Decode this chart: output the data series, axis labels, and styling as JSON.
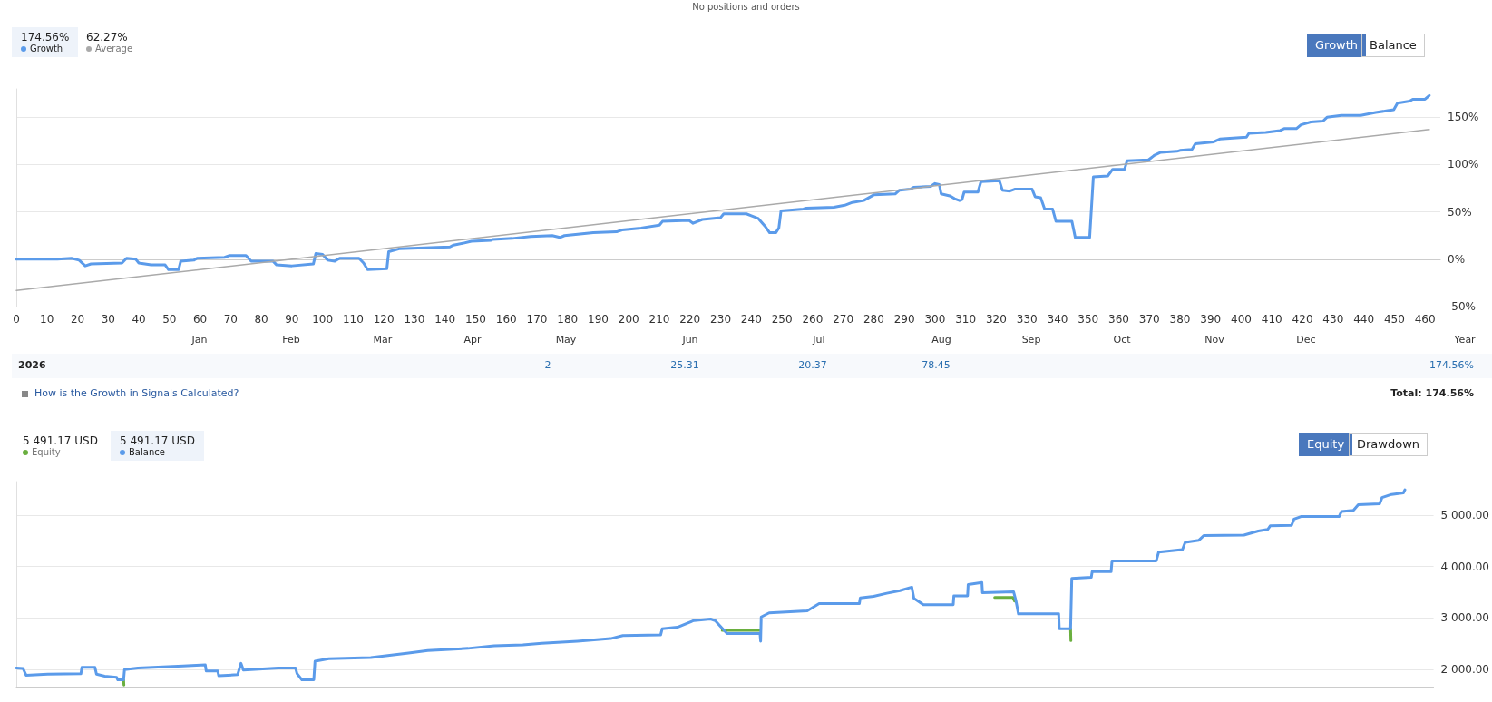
{
  "chart_data": [
    {
      "type": "line",
      "series": [
        {
          "name": "Growth",
          "color": "#5b9bea",
          "x": [
            0,
            13.4,
            18,
            20.5,
            22.5,
            24.4,
            34.5,
            36,
            39,
            40,
            44,
            48.6,
            49.7,
            53,
            53.7,
            58,
            59,
            68,
            69.7,
            75,
            76.7,
            83.8,
            85,
            90,
            97,
            97.8,
            100,
            101.7,
            104,
            105.6,
            111.9,
            113.4,
            114.7,
            121,
            121.6,
            125,
            141.6,
            142.8,
            146,
            148.6,
            155,
            155.6,
            162,
            168,
            175,
            177.5,
            179,
            188.4,
            196,
            197.8,
            204,
            210,
            211,
            219.7,
            221,
            224,
            230,
            231,
            238.4,
            240,
            242.3,
            244.7,
            246,
            248,
            249,
            249.7,
            257,
            258,
            267,
            270.5,
            273,
            276.7,
            280,
            287,
            288.4,
            292,
            293,
            298.6,
            300,
            301.4,
            302,
            304.8,
            306.4,
            308,
            308.8,
            309.5,
            314,
            315,
            321,
            322,
            324.4,
            326,
            331.7,
            332.7,
            334.5,
            335.8,
            338.4,
            339.5,
            344.7,
            345.8,
            350.5,
            351.7,
            356.4,
            358,
            361.9,
            362.7,
            369.7,
            371.7,
            373.7,
            379,
            380,
            383.9,
            385,
            391,
            393,
            401.7,
            402.5,
            408,
            412.7,
            414,
            418,
            419.5,
            422.7,
            426.7,
            428,
            432.7,
            439,
            443.9,
            447.8,
            449.8,
            451,
            455,
            456,
            460,
            461.4
          ],
          "values": [
            0,
            0,
            1,
            -1,
            -7,
            -5,
            -4,
            1,
            0,
            -4,
            -6,
            -6,
            -11,
            -11,
            -2,
            -1,
            1,
            2,
            4,
            4,
            -2,
            -2,
            -6,
            -7,
            -5,
            6,
            5,
            -1,
            -2,
            1,
            1,
            -4,
            -11,
            -10,
            8,
            11,
            13,
            15,
            17,
            19,
            20,
            21,
            22,
            24,
            25,
            23,
            25,
            28,
            29,
            31,
            33,
            36,
            40,
            41,
            38,
            42,
            44,
            48,
            48,
            46,
            43,
            34,
            28,
            28,
            33,
            51,
            53,
            54,
            55,
            57,
            60,
            62,
            68,
            69,
            73,
            74,
            76,
            77,
            80,
            79,
            69,
            67,
            64,
            62,
            63,
            71,
            71,
            82,
            83,
            73,
            72,
            74,
            74,
            66,
            65,
            53,
            53,
            40,
            40,
            23,
            23,
            87,
            88,
            95,
            95,
            104,
            105,
            110,
            113,
            114,
            115,
            116,
            122,
            124,
            127,
            129,
            133,
            134,
            136,
            138,
            138,
            142,
            145,
            146,
            150,
            152,
            152,
            155,
            157,
            158,
            165,
            167,
            169,
            169,
            173
          ]
        },
        {
          "name": "Average",
          "color": "#aaaaaa",
          "x": [
            0,
            461.4
          ],
          "values": [
            -33,
            137
          ]
        }
      ],
      "xlim": [
        0,
        465
      ],
      "xticks": [
        0,
        10,
        20,
        30,
        40,
        50,
        60,
        70,
        80,
        90,
        100,
        110,
        120,
        130,
        140,
        150,
        160,
        170,
        180,
        190,
        200,
        210,
        220,
        230,
        240,
        250,
        260,
        270,
        280,
        290,
        300,
        310,
        320,
        330,
        340,
        350,
        360,
        370,
        380,
        390,
        400,
        410,
        420,
        430,
        440,
        450,
        460
      ],
      "ylim": [
        -50,
        180
      ],
      "yticks": [
        {
          "value": -50,
          "label": "-50%"
        },
        {
          "value": 0,
          "label": "0%"
        },
        {
          "value": 50,
          "label": "50%"
        },
        {
          "value": 100,
          "label": "100%"
        },
        {
          "value": 150,
          "label": "150%"
        }
      ],
      "grid": "y",
      "legend": "top left",
      "annotations": [
        "No positions and orders",
        "174.56%",
        "62.27%",
        "Growth",
        "Balance",
        "2026",
        "2",
        "25.31",
        "20.37",
        "78.45",
        "174.56%",
        "How is the Growth in Signals Calculated?",
        "Total: 174.56%",
        "Jan",
        "Feb",
        "Mar",
        "Apr",
        "May",
        "Jun",
        "Jul",
        "Aug",
        "Sep",
        "Oct",
        "Nov",
        "Dec",
        "Year"
      ]
    },
    {
      "type": "line",
      "series": [
        {
          "name": "Equity",
          "color": "#6aaf3f",
          "x": [
            35.2,
            35.3,
            36,
            229.3,
            231.6,
            244,
            245,
            321,
            327,
            327.5,
            330,
            345.9,
            346
          ],
          "values": [
            1800,
            1700,
            null,
            null,
            2760,
            2760,
            null,
            3400,
            3400,
            3330,
            null,
            2790,
            2560
          ]
        },
        {
          "name": "Balance",
          "color": "#5b9bea",
          "x": [
            0,
            2.2,
            3.2,
            10.3,
            21.2,
            21.5,
            25.8,
            26.3,
            29,
            32.9,
            33.3,
            35.2,
            35.5,
            39.9,
            54.7,
            62,
            62.3,
            66.1,
            66.4,
            72.6,
            73.7,
            74.5,
            85.9,
            91.6,
            92.1,
            93.7,
            97.6,
            98,
            102.5,
            116.3,
            128.7,
            135,
            148.2,
            156.8,
            166.2,
            172.4,
            184.1,
            195,
            199,
            211.4,
            211.9,
            216.9,
            222.3,
            227.8,
            229.3,
            231.6,
            233.2,
            244,
            244.2,
            244.4,
            247,
            259.5,
            263.4,
            276.6,
            276.9,
            281.3,
            285.6,
            289.9,
            293.8,
            294.5,
            297.6,
            307.4,
            307.6,
            312.1,
            312.3,
            316.8,
            317,
            327.2,
            328,
            328.8,
            342,
            342.2,
            345.9,
            346.3,
            352.7,
            353,
            359.2,
            359.5,
            374,
            374.8,
            382.6,
            383.5,
            388,
            389.6,
            402.8,
            407.5,
            410.6,
            411.4,
            418.4,
            419.2,
            421.5,
            434,
            434.8,
            438.7,
            440.3,
            447.3,
            448.1,
            451.2,
            455.1,
            455.6
          ],
          "values": [
            2030,
            2020,
            1890,
            1910,
            1920,
            2040,
            2040,
            1910,
            1870,
            1850,
            1800,
            1800,
            2000,
            2030,
            2070,
            2090,
            1970,
            1970,
            1880,
            1900,
            2120,
            1990,
            2030,
            2030,
            1920,
            1800,
            1800,
            2160,
            2210,
            2230,
            2320,
            2370,
            2410,
            2460,
            2480,
            2510,
            2550,
            2600,
            2660,
            2670,
            2790,
            2820,
            2950,
            2980,
            2950,
            2800,
            2700,
            2700,
            2550,
            3020,
            3100,
            3140,
            3280,
            3280,
            3390,
            3420,
            3480,
            3530,
            3600,
            3380,
            3260,
            3260,
            3430,
            3430,
            3650,
            3690,
            3490,
            3510,
            3330,
            3080,
            3080,
            2790,
            2790,
            3770,
            3790,
            3900,
            3900,
            4110,
            4110,
            4280,
            4330,
            4470,
            4510,
            4600,
            4610,
            4690,
            4720,
            4790,
            4800,
            4920,
            4970,
            4970,
            5070,
            5090,
            5200,
            5220,
            5340,
            5400,
            5430,
            5490
          ]
        }
      ],
      "xlim": [
        0,
        465
      ],
      "tick_labels": "y",
      "ylim": [
        1650,
        5650
      ],
      "yticks": [
        {
          "value": 2000,
          "label": "2 000.00"
        },
        {
          "value": 3000,
          "label": "3 000.00"
        },
        {
          "value": 4000,
          "label": "4 000.00"
        },
        {
          "value": 5000,
          "label": "5 000.00"
        }
      ],
      "grid": "y",
      "legend": "top left",
      "annotations": [
        "5 491.17 USD",
        "5 491.17 USD",
        "Equity",
        "Drawdown"
      ]
    }
  ]
}
